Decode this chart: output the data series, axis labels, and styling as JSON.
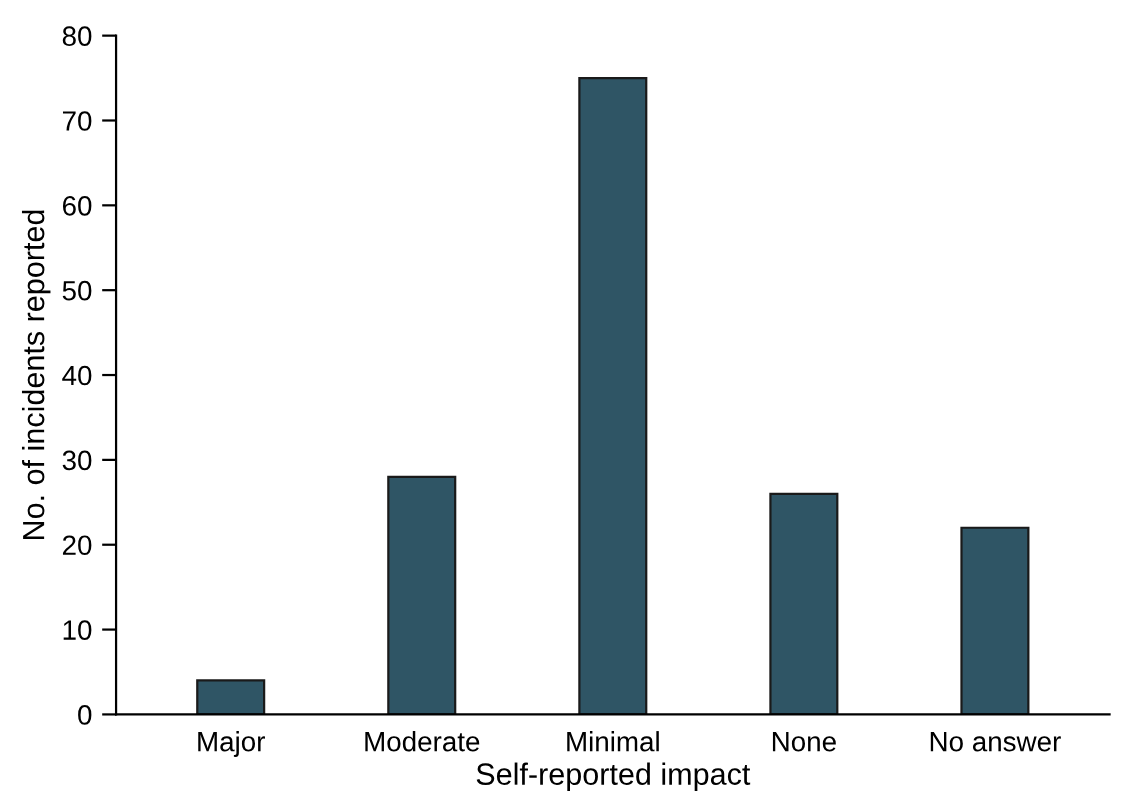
{
  "chart_data": {
    "type": "bar",
    "xlabel": "Self-reported impact",
    "ylabel": "No. of incidents reported",
    "categories": [
      "Major",
      "Moderate",
      "Minimal",
      "None",
      "No answer"
    ],
    "values": [
      4,
      28,
      75,
      26,
      22
    ],
    "color": "#2f5565",
    "ylim": [
      0,
      80
    ],
    "yticks": [
      0,
      10,
      20,
      30,
      40,
      50,
      60,
      70,
      80
    ],
    "grid": false,
    "legend": false
  }
}
